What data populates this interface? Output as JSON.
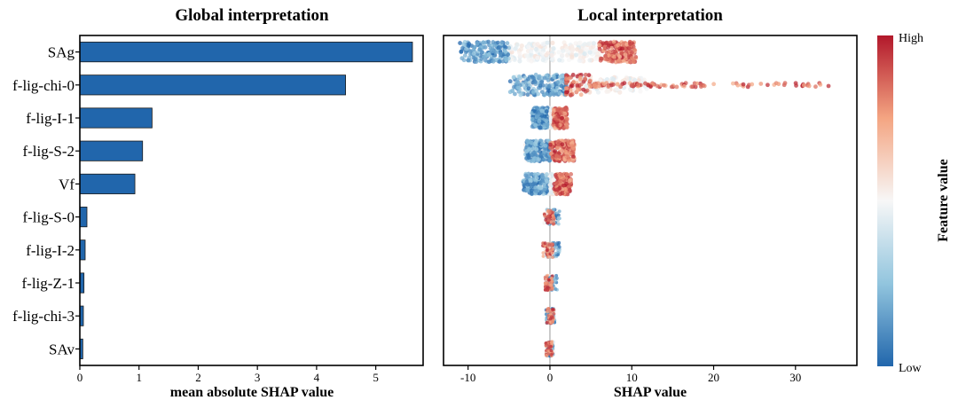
{
  "chart_data": [
    {
      "type": "bar",
      "orientation": "horizontal",
      "title": "Global interpretation",
      "xlabel": "mean absolute SHAP value",
      "ylabel": "",
      "xlim": [
        0,
        5.8
      ],
      "xticks": [
        0,
        1,
        2,
        3,
        4,
        5
      ],
      "categories": [
        "SAg",
        "f-lig-chi-0",
        "f-lig-I-1",
        "f-lig-S-2",
        "Vf",
        "f-lig-S-0",
        "f-lig-I-2",
        "f-lig-Z-1",
        "f-lig-chi-3",
        "SAv"
      ],
      "values": [
        5.62,
        4.49,
        1.22,
        1.06,
        0.93,
        0.12,
        0.09,
        0.07,
        0.06,
        0.05
      ],
      "bar_color": "#2166ac"
    },
    {
      "type": "scatter",
      "subtype": "beeswarm",
      "title": "Local interpretation",
      "xlabel": "SHAP value",
      "xlim": [
        -13,
        37.5
      ],
      "xticks": [
        -10,
        0,
        10,
        20,
        30
      ],
      "features": [
        "SAg",
        "f-lig-chi-0",
        "f-lig-I-1",
        "f-lig-S-2",
        "Vf",
        "f-lig-S-0",
        "f-lig-I-2",
        "f-lig-Z-1",
        "f-lig-chi-3",
        "SAv"
      ],
      "distributions": [
        {
          "feature": "SAg",
          "low_range": [
            -11,
            -5
          ],
          "high_range": [
            6,
            10.5
          ],
          "mid_range": [
            -5,
            6
          ],
          "max": 10.5
        },
        {
          "feature": "f-lig-chi-0",
          "low_range": [
            -5,
            2
          ],
          "high_range": [
            2,
            35
          ],
          "mid_range": [
            -4.5,
            12
          ],
          "max": 35
        },
        {
          "feature": "f-lig-I-1",
          "low_range": [
            -2.2,
            -0.3
          ],
          "high_range": [
            0.4,
            2.1
          ],
          "mid_range": [
            -1,
            1
          ]
        },
        {
          "feature": "f-lig-S-2",
          "low_range": [
            -3,
            0
          ],
          "high_range": [
            0,
            3
          ],
          "mid_range": [
            -3,
            3
          ]
        },
        {
          "feature": "Vf",
          "low_range": [
            -3.3,
            -0.3
          ],
          "high_range": [
            0.5,
            2.6
          ],
          "mid_range": [
            -1,
            1
          ]
        },
        {
          "feature": "f-lig-S-0",
          "low_range": [
            -0.5,
            1.2
          ],
          "high_range": [
            -0.8,
            0.5
          ],
          "mid_range": [
            -0.8,
            1
          ]
        },
        {
          "feature": "f-lig-I-2",
          "low_range": [
            -0.4,
            1.2
          ],
          "high_range": [
            -0.9,
            0.4
          ],
          "mid_range": [
            -0.6,
            0.8
          ]
        },
        {
          "feature": "f-lig-Z-1",
          "low_range": [
            -0.3,
            0.9
          ],
          "high_range": [
            -0.6,
            0.3
          ],
          "mid_range": [
            -0.5,
            0.5
          ]
        },
        {
          "feature": "f-lig-chi-3",
          "low_range": [
            -0.5,
            0.6
          ],
          "high_range": [
            -0.4,
            0.5
          ],
          "mid_range": [
            -0.5,
            0.6
          ]
        },
        {
          "feature": "SAv",
          "low_range": [
            -0.4,
            0.4
          ],
          "high_range": [
            -0.6,
            0.3
          ],
          "mid_range": [
            -0.5,
            0.5
          ]
        }
      ],
      "colormap": "RdBu_r",
      "colorbar": {
        "label": "Feature value",
        "high_label": "High",
        "low_label": "Low"
      }
    }
  ]
}
